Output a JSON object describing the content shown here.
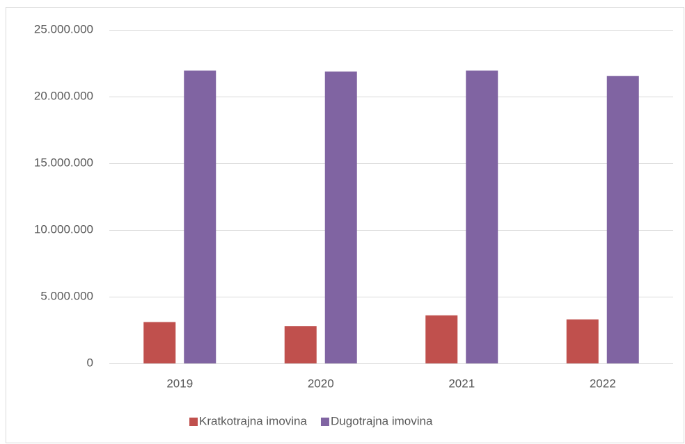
{
  "chart_data": {
    "type": "bar",
    "categories": [
      "2019",
      "2020",
      "2021",
      "2022"
    ],
    "series": [
      {
        "name": "Kratkotrajna imovina",
        "color": "#c0504d",
        "values": [
          3100000,
          2800000,
          3600000,
          3300000
        ]
      },
      {
        "name": "Dugotrajna imovina",
        "color": "#8064a2",
        "values": [
          21950000,
          21880000,
          21950000,
          21550000
        ]
      }
    ],
    "ylim": [
      0,
      25000000
    ],
    "yticks": [
      0,
      {
        "value": 5000000,
        "label": "5.000.000"
      },
      {
        "value": 10000000,
        "label": "10.000.000"
      },
      {
        "value": 15000000,
        "label": "15.000.000"
      },
      {
        "value": 20000000,
        "label": "20.000.000"
      },
      {
        "value": 25000000,
        "label": "25.000.000"
      }
    ],
    "grid": true,
    "legend": "bottom"
  }
}
